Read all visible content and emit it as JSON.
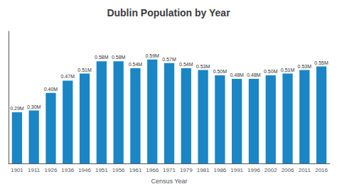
{
  "chart_data": {
    "type": "bar",
    "title": "Dublin Population by Year",
    "xlabel": "Census Year",
    "categories": [
      "1901",
      "1911",
      "1926",
      "1936",
      "1946",
      "1951",
      "1956",
      "1961",
      "1966",
      "1971",
      "1979",
      "1981",
      "1986",
      "1991",
      "1996",
      "2002",
      "2006",
      "2011",
      "2016"
    ],
    "values": [
      0.29,
      0.3,
      0.4,
      0.47,
      0.51,
      0.58,
      0.58,
      0.54,
      0.59,
      0.57,
      0.54,
      0.53,
      0.5,
      0.48,
      0.48,
      0.5,
      0.51,
      0.53,
      0.55
    ],
    "value_labels": [
      "0.29M",
      "0.30M",
      "0.40M",
      "0.47M",
      "0.51M",
      "0.58M",
      "0.58M",
      "0.54M",
      "0.59M",
      "0.57M",
      "0.54M",
      "0.53M",
      "0.50M",
      "0.48M",
      "0.48M",
      "0.50M",
      "0.51M",
      "0.53M",
      "0.55M"
    ],
    "data_labels": true,
    "color": "#1a86c6",
    "ylim": [
      0,
      0.75
    ],
    "tick_labels": "x",
    "grid": false
  }
}
